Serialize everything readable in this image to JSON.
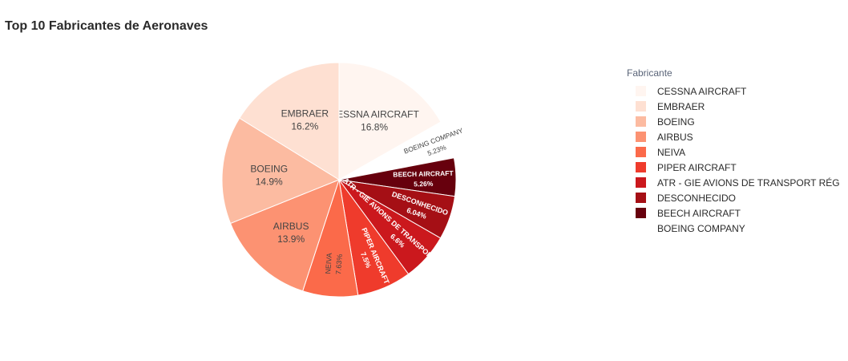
{
  "chart_data": {
    "type": "pie",
    "title": "Top 10 Fabricantes de Aeronaves",
    "legend_title": "Fabricante",
    "legend_position": "right",
    "slices": [
      {
        "label": "CESSNA AIRCRAFT",
        "value": 16.8,
        "pct_text": "16.8%",
        "color": "#fff5f0",
        "text_color": "#444444"
      },
      {
        "label": "BOEING COMPANY",
        "value": 5.23,
        "pct_text": "5.23%",
        "color": "#ffffff",
        "text_color": "#444444",
        "pulled": true
      },
      {
        "label": "BEECH AIRCRAFT",
        "value": 5.26,
        "pct_text": "5.26%",
        "color": "#67000d",
        "text_color": "#ffffff"
      },
      {
        "label": "DESCONHECIDO",
        "value": 6.04,
        "pct_text": "6.04%",
        "color": "#a50f15",
        "text_color": "#ffffff"
      },
      {
        "label": "ATR - GIE AVIONS DE TRANSPORT RÉGIONAL",
        "value": 6.6,
        "pct_text": "6.6%",
        "color": "#cb181d",
        "text_color": "#ffffff"
      },
      {
        "label": "PIPER AIRCRAFT",
        "value": 7.5,
        "pct_text": "7.5%",
        "color": "#ef3b2c",
        "text_color": "#ffffff"
      },
      {
        "label": "NEIVA",
        "value": 7.63,
        "pct_text": "7.63%",
        "color": "#fb6a4a",
        "text_color": "#444444"
      },
      {
        "label": "AIRBUS",
        "value": 13.9,
        "pct_text": "13.9%",
        "color": "#fc9272",
        "text_color": "#444444"
      },
      {
        "label": "BOEING",
        "value": 14.9,
        "pct_text": "14.9%",
        "color": "#fcbba1",
        "text_color": "#444444"
      },
      {
        "label": "EMBRAER",
        "value": 16.2,
        "pct_text": "16.2%",
        "color": "#fee0d2",
        "text_color": "#444444"
      }
    ],
    "legend": [
      {
        "label": "CESSNA AIRCRAFT",
        "color": "#fff5f0"
      },
      {
        "label": "EMBRAER",
        "color": "#fee0d2"
      },
      {
        "label": "BOEING",
        "color": "#fcbba1"
      },
      {
        "label": "AIRBUS",
        "color": "#fc9272"
      },
      {
        "label": "NEIVA",
        "color": "#fb6a4a"
      },
      {
        "label": "PIPER AIRCRAFT",
        "color": "#ef3b2c"
      },
      {
        "label": "ATR - GIE AVIONS DE TRANSPORT RÉG",
        "color": "#cb181d"
      },
      {
        "label": "DESCONHECIDO",
        "color": "#a50f15"
      },
      {
        "label": "BEECH AIRCRAFT",
        "color": "#67000d"
      },
      {
        "label": "BOEING COMPANY",
        "color": "#ffffff"
      }
    ]
  }
}
